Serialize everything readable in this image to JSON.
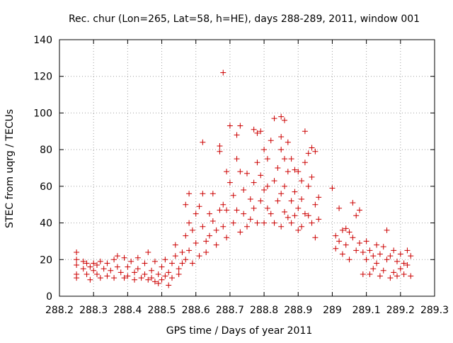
{
  "chart_data": {
    "type": "scatter",
    "title": "Rec. chur (Lon=265, Lat=58, h=HE), days 288-289, 2011, window 001",
    "xlabel": "GPS time / Days of year 2011",
    "ylabel": "STEC from uqrg / TECUs",
    "xlim": [
      288.2,
      289.3
    ],
    "ylim": [
      0,
      140
    ],
    "xticks": [
      "288.2",
      "288.3",
      "288.4",
      "288.5",
      "288.6",
      "288.7",
      "288.8",
      "288.9",
      "289",
      "289.1",
      "289.2",
      "289.3"
    ],
    "yticks": [
      "0",
      "20",
      "40",
      "60",
      "80",
      "100",
      "120",
      "140"
    ],
    "grid": true,
    "marker": "+",
    "color": "#cc0000",
    "series": [
      {
        "points": [
          [
            288.25,
            24
          ],
          [
            288.25,
            20
          ],
          [
            288.25,
            17
          ],
          [
            288.25,
            12
          ],
          [
            288.25,
            10
          ],
          [
            288.27,
            19
          ],
          [
            288.27,
            15
          ],
          [
            288.28,
            18
          ],
          [
            288.28,
            12
          ],
          [
            288.29,
            16
          ],
          [
            288.29,
            9
          ],
          [
            288.3,
            18
          ],
          [
            288.3,
            14
          ],
          [
            288.31,
            17
          ],
          [
            288.31,
            12
          ],
          [
            288.32,
            19
          ],
          [
            288.32,
            10
          ],
          [
            288.33,
            15
          ],
          [
            288.34,
            18
          ],
          [
            288.34,
            11
          ],
          [
            288.35,
            14
          ],
          [
            288.36,
            20
          ],
          [
            288.36,
            10
          ],
          [
            288.37,
            16
          ],
          [
            288.37,
            22
          ],
          [
            288.38,
            13
          ],
          [
            288.39,
            21
          ],
          [
            288.39,
            10
          ],
          [
            288.4,
            16
          ],
          [
            288.4,
            11
          ],
          [
            288.41,
            19
          ],
          [
            288.42,
            13
          ],
          [
            288.42,
            9
          ],
          [
            288.43,
            21
          ],
          [
            288.43,
            15
          ],
          [
            288.44,
            10
          ],
          [
            288.45,
            18
          ],
          [
            288.45,
            12
          ],
          [
            288.46,
            24
          ],
          [
            288.46,
            9
          ],
          [
            288.47,
            14
          ],
          [
            288.47,
            10
          ],
          [
            288.48,
            19
          ],
          [
            288.48,
            8
          ],
          [
            288.49,
            12
          ],
          [
            288.49,
            7
          ],
          [
            288.5,
            16
          ],
          [
            288.5,
            9
          ],
          [
            288.51,
            20
          ],
          [
            288.51,
            11
          ],
          [
            288.52,
            6
          ],
          [
            288.52,
            13
          ],
          [
            288.53,
            18
          ],
          [
            288.53,
            10
          ],
          [
            288.54,
            28
          ],
          [
            288.54,
            22
          ],
          [
            288.55,
            15
          ],
          [
            288.55,
            12
          ],
          [
            288.56,
            24
          ],
          [
            288.56,
            18
          ],
          [
            288.57,
            33
          ],
          [
            288.57,
            20
          ],
          [
            288.57,
            50
          ],
          [
            288.58,
            56
          ],
          [
            288.58,
            40
          ],
          [
            288.58,
            25
          ],
          [
            288.59,
            36
          ],
          [
            288.59,
            18
          ],
          [
            288.6,
            45
          ],
          [
            288.6,
            29
          ],
          [
            288.61,
            49
          ],
          [
            288.61,
            22
          ],
          [
            288.62,
            84
          ],
          [
            288.62,
            56
          ],
          [
            288.62,
            38
          ],
          [
            288.63,
            30
          ],
          [
            288.63,
            24
          ],
          [
            288.64,
            45
          ],
          [
            288.64,
            33
          ],
          [
            288.65,
            56
          ],
          [
            288.65,
            41
          ],
          [
            288.66,
            36
          ],
          [
            288.66,
            28
          ],
          [
            288.67,
            82
          ],
          [
            288.67,
            79
          ],
          [
            288.67,
            47
          ],
          [
            288.68,
            122
          ],
          [
            288.68,
            50
          ],
          [
            288.68,
            38
          ],
          [
            288.69,
            68
          ],
          [
            288.69,
            47
          ],
          [
            288.69,
            32
          ],
          [
            288.7,
            93
          ],
          [
            288.7,
            62
          ],
          [
            288.71,
            55
          ],
          [
            288.71,
            40
          ],
          [
            288.72,
            88
          ],
          [
            288.72,
            75
          ],
          [
            288.72,
            47
          ],
          [
            288.73,
            93
          ],
          [
            288.73,
            68
          ],
          [
            288.73,
            35
          ],
          [
            288.74,
            58
          ],
          [
            288.74,
            45
          ],
          [
            288.75,
            67
          ],
          [
            288.75,
            38
          ],
          [
            288.76,
            53
          ],
          [
            288.76,
            42
          ],
          [
            288.77,
            91
          ],
          [
            288.77,
            62
          ],
          [
            288.77,
            48
          ],
          [
            288.78,
            89
          ],
          [
            288.78,
            73
          ],
          [
            288.78,
            40
          ],
          [
            288.79,
            90
          ],
          [
            288.79,
            66
          ],
          [
            288.79,
            52
          ],
          [
            288.8,
            80
          ],
          [
            288.8,
            58
          ],
          [
            288.8,
            40
          ],
          [
            288.81,
            75
          ],
          [
            288.81,
            60
          ],
          [
            288.81,
            48
          ],
          [
            288.82,
            85
          ],
          [
            288.82,
            45
          ],
          [
            288.83,
            97
          ],
          [
            288.83,
            63
          ],
          [
            288.83,
            40
          ],
          [
            288.84,
            70
          ],
          [
            288.84,
            52
          ],
          [
            288.85,
            98
          ],
          [
            288.85,
            87
          ],
          [
            288.85,
            80
          ],
          [
            288.85,
            56
          ],
          [
            288.85,
            38
          ],
          [
            288.86,
            96
          ],
          [
            288.86,
            75
          ],
          [
            288.86,
            60
          ],
          [
            288.86,
            46
          ],
          [
            288.87,
            84
          ],
          [
            288.87,
            68
          ],
          [
            288.87,
            43
          ],
          [
            288.88,
            75
          ],
          [
            288.88,
            52
          ],
          [
            288.88,
            40
          ],
          [
            288.89,
            69
          ],
          [
            288.89,
            57
          ],
          [
            288.89,
            44
          ],
          [
            288.9,
            68
          ],
          [
            288.9,
            48
          ],
          [
            288.9,
            36
          ],
          [
            288.91,
            63
          ],
          [
            288.91,
            53
          ],
          [
            288.91,
            38
          ],
          [
            288.92,
            90
          ],
          [
            288.92,
            73
          ],
          [
            288.92,
            45
          ],
          [
            288.93,
            78
          ],
          [
            288.93,
            60
          ],
          [
            288.93,
            44
          ],
          [
            288.94,
            81
          ],
          [
            288.94,
            65
          ],
          [
            288.94,
            40
          ],
          [
            288.95,
            79
          ],
          [
            288.95,
            50
          ],
          [
            288.95,
            32
          ],
          [
            288.96,
            54
          ],
          [
            288.96,
            42
          ],
          [
            289.0,
            59
          ],
          [
            289.01,
            33
          ],
          [
            289.01,
            26
          ],
          [
            289.02,
            48
          ],
          [
            289.02,
            30
          ],
          [
            289.03,
            36
          ],
          [
            289.03,
            23
          ],
          [
            289.04,
            37
          ],
          [
            289.04,
            28
          ],
          [
            289.05,
            35
          ],
          [
            289.05,
            20
          ],
          [
            289.06,
            51
          ],
          [
            289.06,
            32
          ],
          [
            289.07,
            44
          ],
          [
            289.07,
            25
          ],
          [
            289.08,
            47
          ],
          [
            289.08,
            29
          ],
          [
            289.09,
            24
          ],
          [
            289.09,
            12
          ],
          [
            289.1,
            30
          ],
          [
            289.1,
            20
          ],
          [
            289.11,
            25
          ],
          [
            289.11,
            12
          ],
          [
            289.12,
            22
          ],
          [
            289.12,
            15
          ],
          [
            289.13,
            28
          ],
          [
            289.13,
            18
          ],
          [
            289.14,
            23
          ],
          [
            289.14,
            11
          ],
          [
            289.15,
            27
          ],
          [
            289.15,
            14
          ],
          [
            289.16,
            36
          ],
          [
            289.16,
            20
          ],
          [
            289.17,
            22
          ],
          [
            289.17,
            10
          ],
          [
            289.18,
            25
          ],
          [
            289.18,
            13
          ],
          [
            289.19,
            19
          ],
          [
            289.19,
            11
          ],
          [
            289.2,
            23
          ],
          [
            289.2,
            15
          ],
          [
            289.21,
            18
          ],
          [
            289.21,
            12
          ],
          [
            289.22,
            25
          ],
          [
            289.22,
            17
          ],
          [
            289.23,
            22
          ],
          [
            289.23,
            11
          ]
        ]
      }
    ]
  }
}
